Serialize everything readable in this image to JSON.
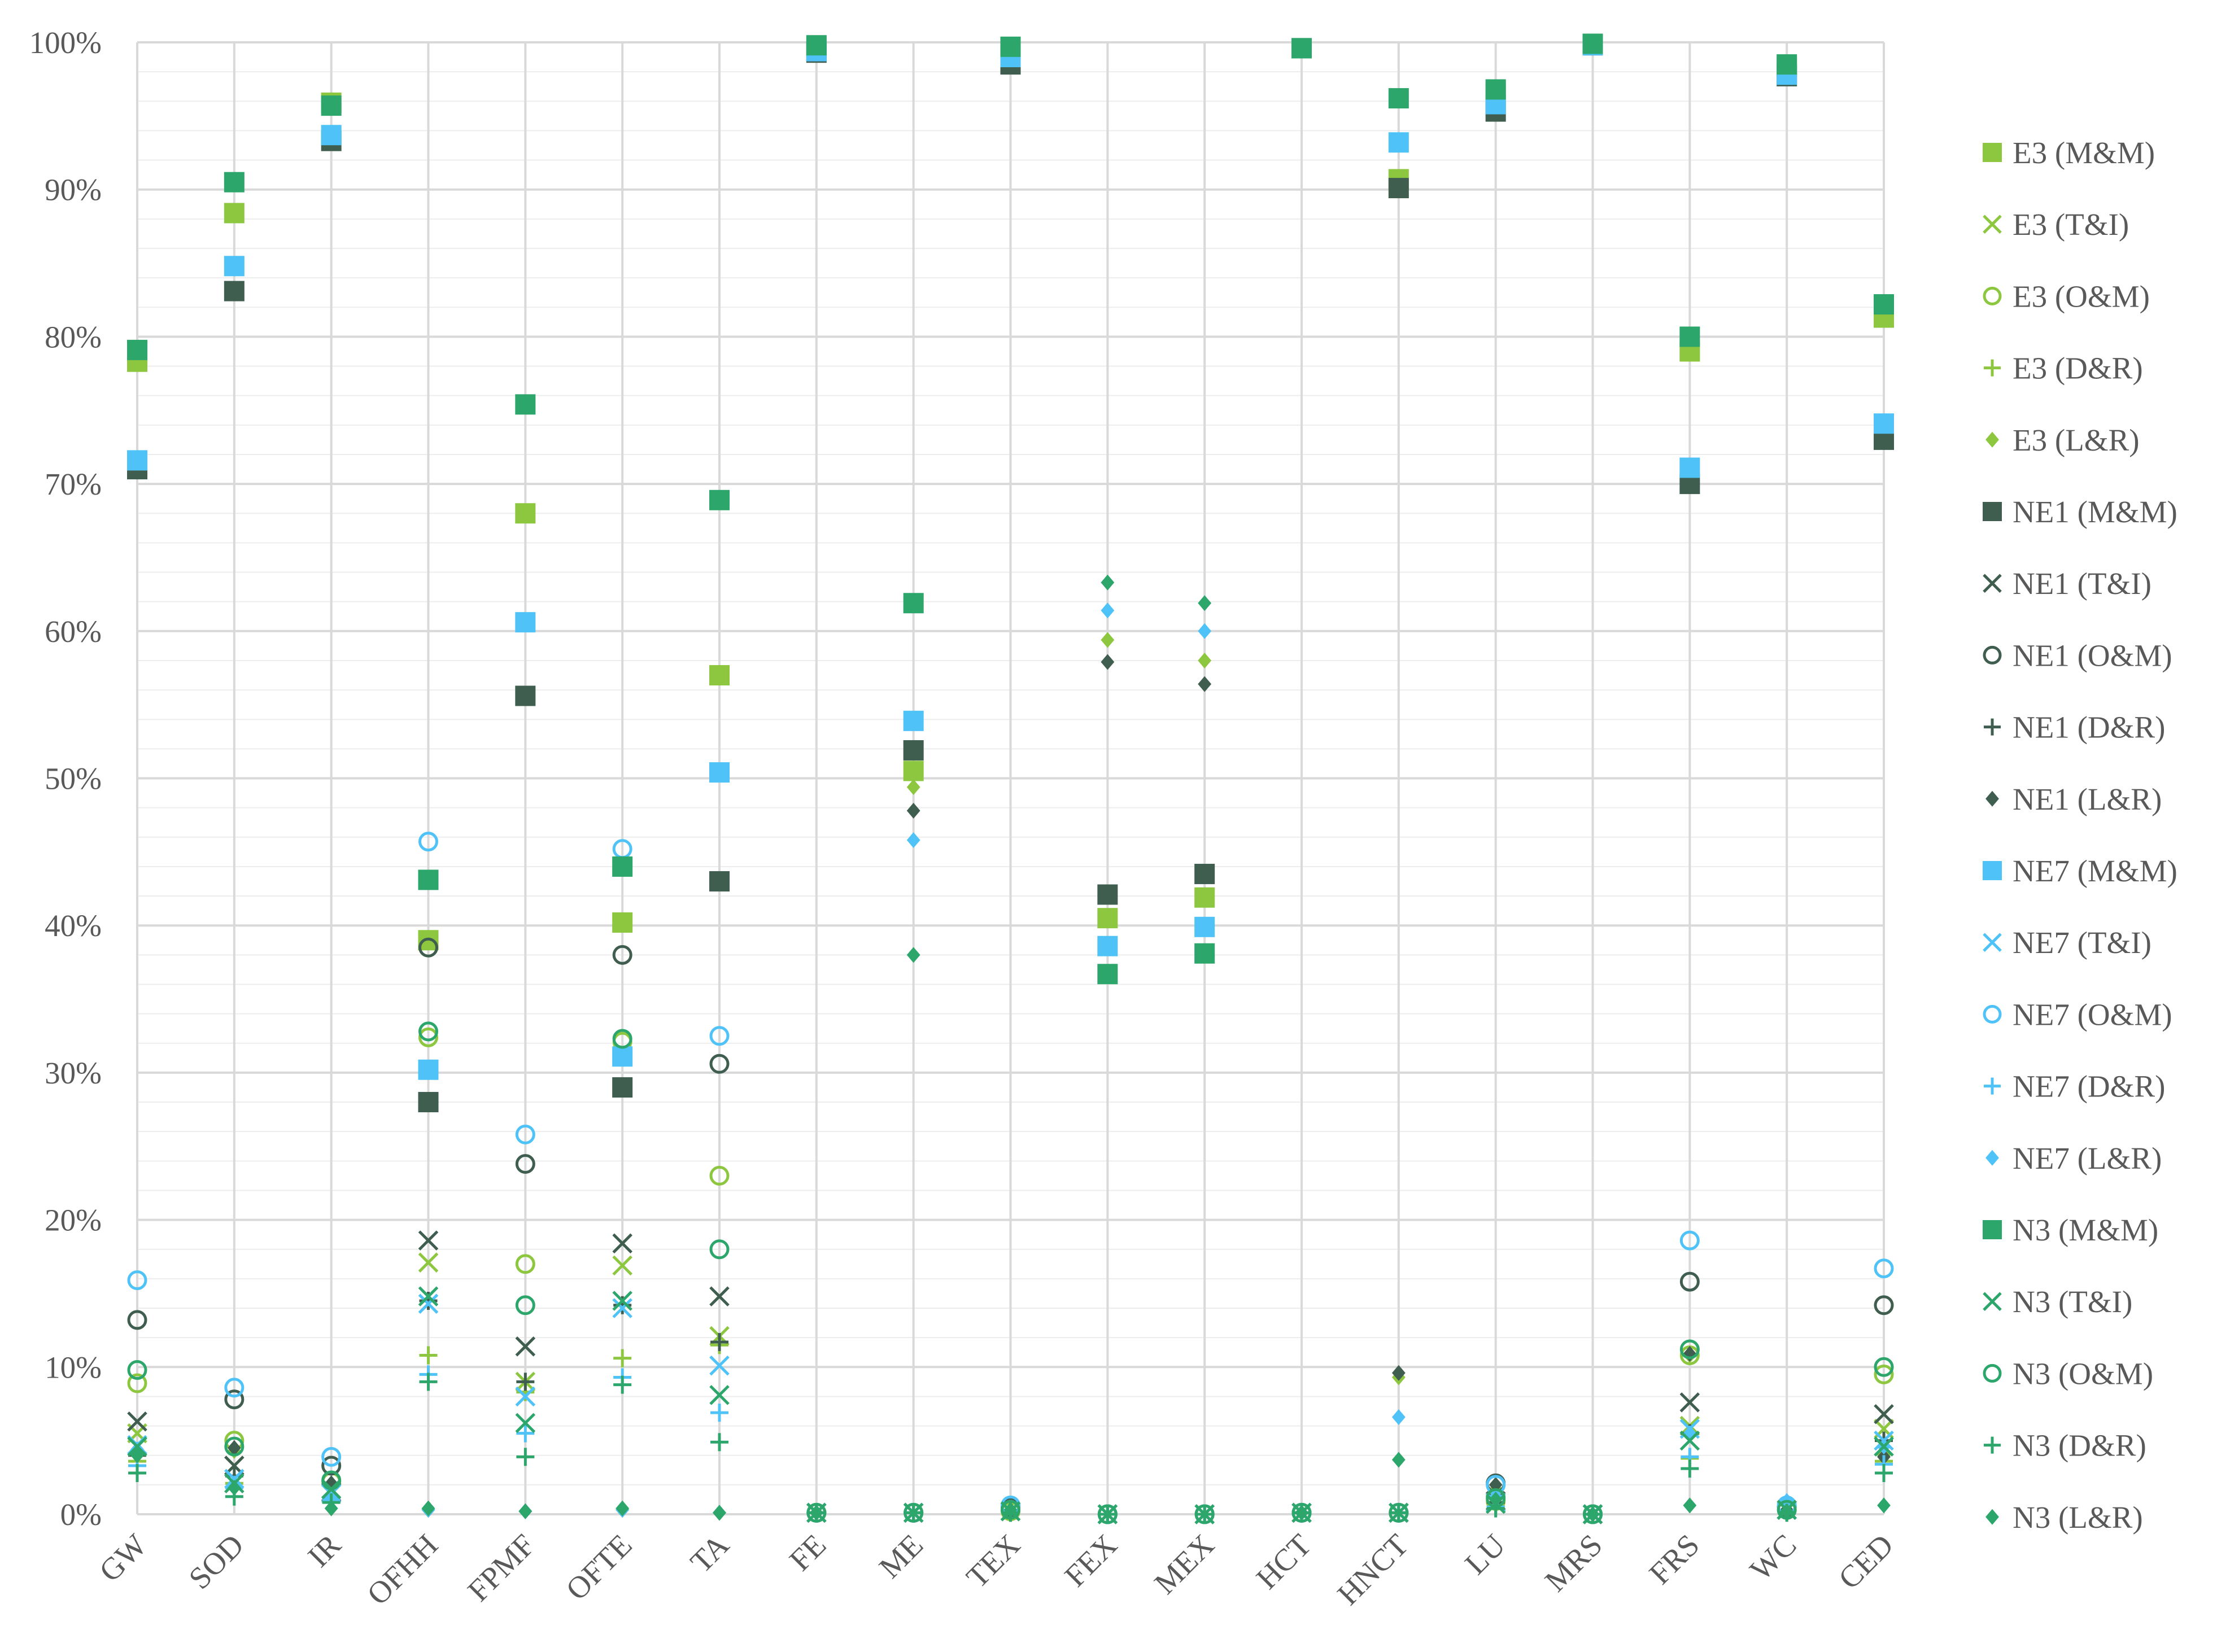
{
  "chart_data": {
    "type": "scatter",
    "title": "",
    "xlabel": "",
    "ylabel": "",
    "ylim": [
      0,
      100
    ],
    "y_ticks": [
      "0%",
      "10%",
      "20%",
      "30%",
      "40%",
      "50%",
      "60%",
      "70%",
      "80%",
      "90%",
      "100%"
    ],
    "y_tick_values": [
      0,
      10,
      20,
      30,
      40,
      50,
      60,
      70,
      80,
      90,
      100
    ],
    "grid": true,
    "legend_position": "right",
    "categories": [
      "GW",
      "SOD",
      "IR",
      "OFHH",
      "FPMF",
      "OFTE",
      "TA",
      "FE",
      "ME",
      "TEX",
      "FEX",
      "MEX",
      "HCT",
      "HNCT",
      "LU",
      "MRS",
      "FRS",
      "WC",
      "CED"
    ],
    "series": [
      {
        "name": "E3 (M&M)",
        "marker": "square",
        "color": "#8DC63F",
        "values": [
          78.3,
          88.4,
          95.9,
          39.0,
          68.0,
          40.2,
          57.0,
          99.7,
          50.5,
          99.5,
          40.5,
          41.9,
          99.6,
          90.7,
          96.6,
          99.9,
          79.0,
          98.3,
          81.3
        ]
      },
      {
        "name": "E3 (T&I)",
        "marker": "x",
        "color": "#8DC63F",
        "values": [
          5.5,
          3.3,
          1.4,
          17.1,
          9.0,
          16.9,
          12.1,
          0.1,
          0.1,
          0.2,
          0,
          0,
          0.1,
          0.1,
          0.8,
          0,
          6.0,
          0.3,
          5.8
        ]
      },
      {
        "name": "E3 (O&M)",
        "marker": "circle",
        "color": "#8DC63F",
        "values": [
          8.9,
          5.0,
          2.2,
          32.4,
          17.0,
          32.1,
          23.0,
          0.1,
          0.1,
          0.2,
          0,
          0,
          0.1,
          0.1,
          0.9,
          0,
          10.8,
          0.3,
          9.5
        ]
      },
      {
        "name": "E3 (D&R)",
        "marker": "plus",
        "color": "#8DC63F",
        "values": [
          3.6,
          2.1,
          1.0,
          10.8,
          8.3,
          10.6,
          11.5,
          0.1,
          0.1,
          0.1,
          0,
          0,
          0.1,
          0.1,
          0.6,
          0,
          3.8,
          0.2,
          3.6
        ]
      },
      {
        "name": "E3 (L&R)",
        "marker": "diamond",
        "color": "#8DC63F",
        "values": [
          4.4,
          4.3,
          2.0,
          0.3,
          0.2,
          0.3,
          0.1,
          0.1,
          49.4,
          0.3,
          59.4,
          58.0,
          0.1,
          9.3,
          1.7,
          0,
          10.8,
          0.3,
          4.0
        ]
      },
      {
        "name": "NE1 (M&M)",
        "marker": "square",
        "color": "#3F5E4F",
        "values": [
          71.0,
          83.1,
          93.3,
          28.0,
          55.6,
          29.0,
          43.0,
          99.3,
          51.9,
          98.5,
          42.1,
          43.5,
          99.6,
          90.1,
          95.3,
          99.8,
          70.0,
          97.7,
          73.0
        ]
      },
      {
        "name": "NE1 (T&I)",
        "marker": "x",
        "color": "#3F5E4F",
        "values": [
          6.3,
          3.3,
          1.5,
          18.6,
          11.4,
          18.4,
          14.8,
          0.1,
          0.1,
          0.2,
          0,
          0,
          0.1,
          0.1,
          0.9,
          0,
          7.6,
          0.3,
          6.8
        ]
      },
      {
        "name": "NE1 (O&M)",
        "marker": "circle",
        "color": "#3F5E4F",
        "values": [
          13.2,
          7.8,
          3.3,
          38.5,
          23.8,
          38.0,
          30.6,
          0.1,
          0.1,
          0.5,
          0,
          0,
          0.1,
          0.1,
          2.1,
          0,
          15.8,
          0.5,
          14.2
        ]
      },
      {
        "name": "NE1 (D&R)",
        "marker": "plus",
        "color": "#3F5E4F",
        "values": [
          4.0,
          2.6,
          1.1,
          14.5,
          9.0,
          14.2,
          11.7,
          0.1,
          0.1,
          0.2,
          0,
          0,
          0.1,
          0.1,
          0.8,
          0,
          5.5,
          0.2,
          5.0
        ]
      },
      {
        "name": "NE1 (L&R)",
        "marker": "diamond",
        "color": "#3F5E4F",
        "values": [
          4.3,
          4.5,
          2.1,
          0.3,
          0.2,
          0.3,
          0.1,
          0.1,
          47.8,
          0.3,
          57.9,
          56.4,
          0.1,
          9.6,
          2.0,
          0,
          10.9,
          0.3,
          3.9
        ]
      },
      {
        "name": "NE7 (M&M)",
        "marker": "square",
        "color": "#4FC3F7",
        "values": [
          71.6,
          84.8,
          93.7,
          30.2,
          60.6,
          31.1,
          50.4,
          99.4,
          53.9,
          99.0,
          38.6,
          39.9,
          99.6,
          93.2,
          95.8,
          99.8,
          71.1,
          97.8,
          74.1
        ]
      },
      {
        "name": "NE7 (T&I)",
        "marker": "x",
        "color": "#4FC3F7",
        "values": [
          4.7,
          2.4,
          1.4,
          14.3,
          8.0,
          14.0,
          10.1,
          0.1,
          0.1,
          0.2,
          0,
          0,
          0.1,
          0.1,
          0.8,
          0,
          5.8,
          0.3,
          5.0
        ]
      },
      {
        "name": "NE7 (O&M)",
        "marker": "circle",
        "color": "#4FC3F7",
        "values": [
          15.9,
          8.6,
          3.9,
          45.7,
          25.8,
          45.2,
          32.5,
          0.1,
          0.1,
          0.6,
          0,
          0,
          0.1,
          0.1,
          2.0,
          0,
          18.6,
          0.6,
          16.7
        ]
      },
      {
        "name": "NE7 (D&R)",
        "marker": "plus",
        "color": "#4FC3F7",
        "values": [
          3.3,
          1.8,
          1.0,
          9.5,
          5.5,
          9.3,
          6.9,
          0.1,
          0.1,
          0.1,
          0,
          0,
          0.1,
          0.1,
          0.5,
          0,
          3.9,
          0.2,
          3.4
        ]
      },
      {
        "name": "NE7 (L&R)",
        "marker": "diamond",
        "color": "#4FC3F7",
        "values": [
          4.4,
          2.1,
          1.1,
          0.3,
          0.2,
          0.3,
          0.1,
          0.1,
          45.8,
          0.3,
          61.4,
          60.0,
          0.1,
          6.6,
          1.2,
          0,
          5.5,
          0.9,
          4.6
        ]
      },
      {
        "name": "N3 (M&M)",
        "marker": "square",
        "color": "#2DA66B",
        "values": [
          79.1,
          90.5,
          95.7,
          43.1,
          75.4,
          44.0,
          68.9,
          99.8,
          61.9,
          99.7,
          36.7,
          38.1,
          99.6,
          96.2,
          96.8,
          99.9,
          80.0,
          98.5,
          82.2
        ]
      },
      {
        "name": "N3 (T&I)",
        "marker": "x",
        "color": "#2DA66B",
        "values": [
          4.6,
          2.1,
          1.7,
          14.8,
          6.2,
          14.5,
          8.1,
          0.1,
          0.1,
          0.2,
          0,
          0,
          0.1,
          0.1,
          0.7,
          0,
          5.0,
          0.3,
          4.6
        ]
      },
      {
        "name": "N3 (O&M)",
        "marker": "circle",
        "color": "#2DA66B",
        "values": [
          9.8,
          4.6,
          2.3,
          32.8,
          14.2,
          32.3,
          18.0,
          0.1,
          0.1,
          0.3,
          0,
          0,
          0.1,
          0.1,
          1.1,
          0,
          11.2,
          0.3,
          10.0
        ]
      },
      {
        "name": "N3 (D&R)",
        "marker": "plus",
        "color": "#2DA66B",
        "values": [
          2.8,
          1.2,
          0.8,
          9.0,
          3.9,
          8.8,
          4.9,
          0.1,
          0.1,
          0.1,
          0,
          0,
          0.1,
          0.1,
          0.4,
          0,
          3.1,
          0.1,
          2.8
        ]
      },
      {
        "name": "N3 (L&R)",
        "marker": "diamond",
        "color": "#2DA66B",
        "values": [
          4.0,
          1.8,
          0.4,
          0.4,
          0.2,
          0.4,
          0.1,
          0.1,
          38.0,
          0.3,
          63.3,
          61.9,
          0.1,
          3.7,
          1.0,
          0,
          0.6,
          0.2,
          0.6
        ]
      }
    ]
  }
}
